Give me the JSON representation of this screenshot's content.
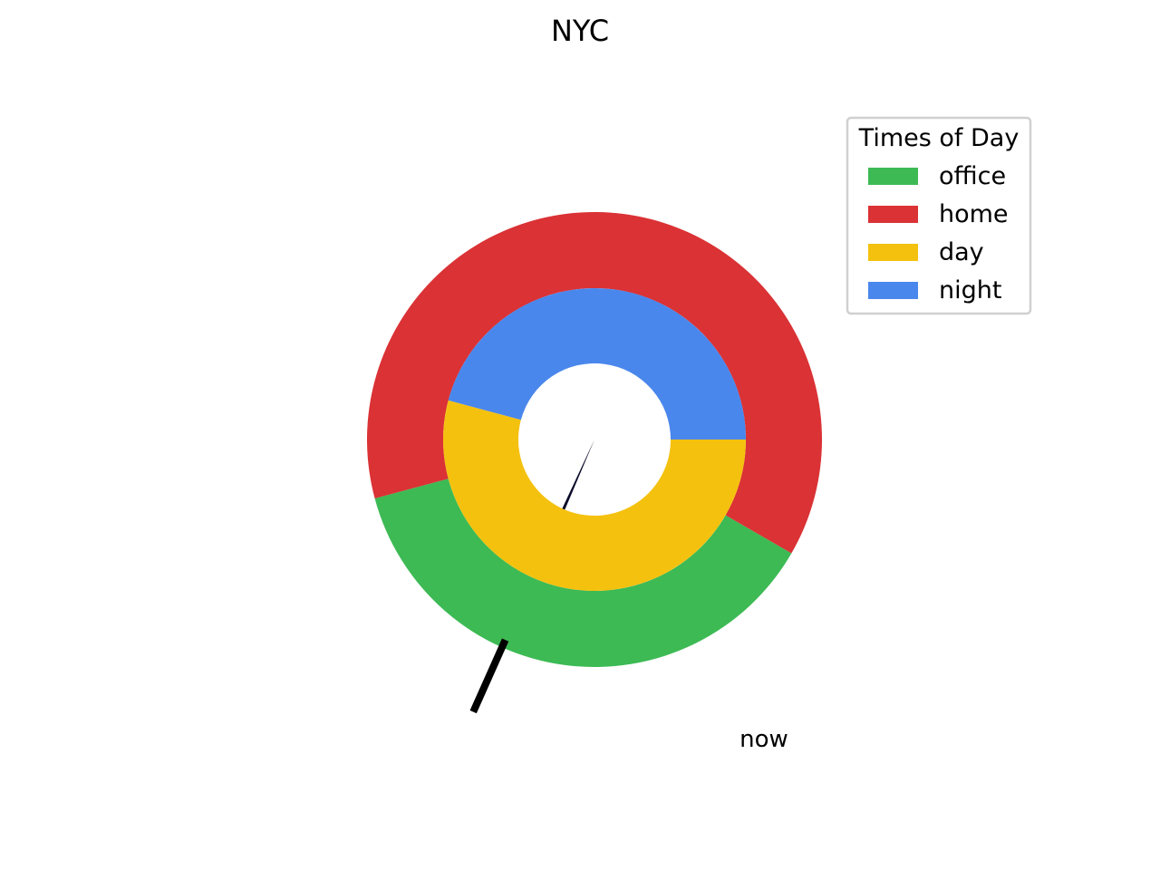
{
  "chart_data": {
    "type": "pie",
    "title": "NYC",
    "legend": {
      "title": "Times of Day",
      "placement": "top-right",
      "entries": [
        {
          "label": "office",
          "color": "#3dba54"
        },
        {
          "label": "home",
          "color": "#da3235"
        },
        {
          "label": "day",
          "color": "#f4c10f"
        },
        {
          "label": "night",
          "color": "#4a87ec"
        }
      ]
    },
    "rings": [
      {
        "name": "outer",
        "unit": "hours",
        "slices": [
          {
            "label": "office",
            "start": 8,
            "end": 17,
            "color": "#3dba54"
          },
          {
            "label": "home",
            "start": 17,
            "end": 32,
            "color": "#da3235"
          }
        ]
      },
      {
        "name": "inner",
        "unit": "hours",
        "slices": [
          {
            "label": "day",
            "start": 6,
            "end": 19,
            "color": "#f4c10f"
          },
          {
            "label": "night",
            "start": 19,
            "end": 30,
            "color": "#4a87ec"
          }
        ]
      }
    ],
    "period_hours": 24,
    "zero_at": "top",
    "direction": "clockwise",
    "now_hour": 13.6,
    "annotation": "now"
  }
}
